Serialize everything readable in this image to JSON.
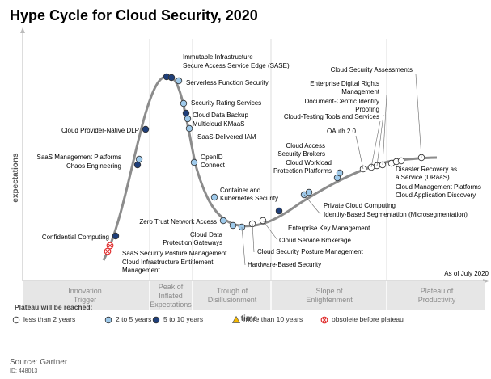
{
  "title": "Hype Cycle for Cloud Security, 2020",
  "y_axis_label": "expectations",
  "x_axis_label": "time",
  "as_of": "As of July 2020",
  "phases": [
    "Innovation Trigger",
    "Peak of Inflated Expectations",
    "Trough of Disillusionment",
    "Slope of Enlightenment",
    "Plateau of Productivity"
  ],
  "legend": {
    "title": "Plateau will be reached:",
    "items": [
      {
        "label": "less than 2 years",
        "color": "#ffffff",
        "shape": "circle"
      },
      {
        "label": "2 to 5 years",
        "color": "#9ec9ea",
        "shape": "circle"
      },
      {
        "label": "5 to 10 years",
        "color": "#1f3f7a",
        "shape": "circle"
      },
      {
        "label": "more than 10 years",
        "color": "#f5b800",
        "shape": "triangle"
      },
      {
        "label": "obsolete before plateau",
        "color": "#e03030",
        "shape": "x-circle"
      }
    ]
  },
  "technologies": [
    {
      "name": "Immutable Infrastructure",
      "category": "5 to 10 years"
    },
    {
      "name": "Secure Access Service Edge (SASE)",
      "category": "5 to 10 years"
    },
    {
      "name": "Serverless Function Security",
      "category": "2 to 5 years"
    },
    {
      "name": "Security Rating Services",
      "category": "2 to 5 years"
    },
    {
      "name": "Cloud Data Backup",
      "category": "5 to 10 years"
    },
    {
      "name": "Multicloud KMaaS",
      "category": "2 to 5 years"
    },
    {
      "name": "SaaS-Delivered IAM",
      "category": "2 to 5 years"
    },
    {
      "name": "OpenID Connect",
      "category": "2 to 5 years"
    },
    {
      "name": "Container and Kubernetes Security",
      "category": "2 to 5 years"
    },
    {
      "name": "Zero Trust Network Access",
      "category": "2 to 5 years"
    },
    {
      "name": "Cloud Data Protection Gateways",
      "category": "2 to 5 years"
    },
    {
      "name": "Hardware-Based Security",
      "category": "2 to 5 years"
    },
    {
      "name": "Cloud Security Posture Management",
      "category": "less than 2 years"
    },
    {
      "name": "Cloud Service Brokerage",
      "category": "less than 2 years"
    },
    {
      "name": "Enterprise Key Management",
      "category": "5 to 10 years"
    },
    {
      "name": "Identity-Based Segmentation (Microsegmentation)",
      "category": "2 to 5 years"
    },
    {
      "name": "Private Cloud Computing",
      "category": "2 to 5 years"
    },
    {
      "name": "Cloud Workload Protection Platforms",
      "category": "2 to 5 years"
    },
    {
      "name": "Cloud Access Security Brokers",
      "category": "2 to 5 years"
    },
    {
      "name": "OAuth 2.0",
      "category": "less than 2 years"
    },
    {
      "name": "Cloud-Testing Tools and Services",
      "category": "less than 2 years"
    },
    {
      "name": "Document-Centric Identity Proofing",
      "category": "less than 2 years"
    },
    {
      "name": "Enterprise Digital Rights Management",
      "category": "less than 2 years"
    },
    {
      "name": "Cloud Security Assessments",
      "category": "less than 2 years"
    },
    {
      "name": "Disaster Recovery as a Service (DRaaS)",
      "category": "less than 2 years"
    },
    {
      "name": "Cloud Management Platforms",
      "category": "less than 2 years"
    },
    {
      "name": "Cloud Application Discovery",
      "category": "less than 2 years"
    },
    {
      "name": "Cloud Provider-Native DLP",
      "category": "5 to 10 years"
    },
    {
      "name": "SaaS Management Platforms",
      "category": "2 to 5 years"
    },
    {
      "name": "Chaos Engineering",
      "category": "5 to 10 years"
    },
    {
      "name": "Confidential Computing",
      "category": "5 to 10 years"
    },
    {
      "name": "SaaS Security Posture Management",
      "category": "obsolete before plateau"
    },
    {
      "name": "Cloud Infrastructure Entitlement Management",
      "category": "obsolete before plateau"
    }
  ],
  "source": "Source: Gartner",
  "doc_id": "ID: 448013"
}
